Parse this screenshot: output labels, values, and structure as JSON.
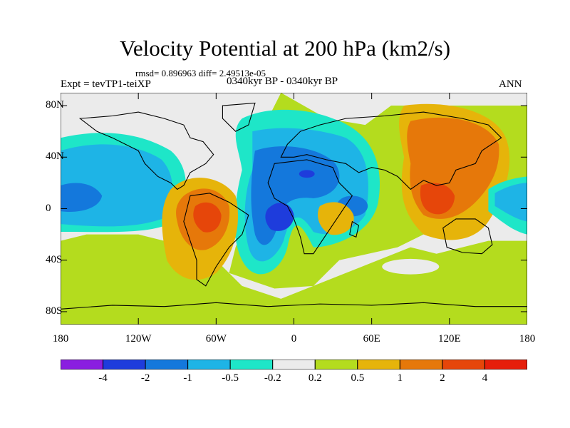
{
  "title": "Velocity Potential at 200 hPa (km2/s)",
  "stats": "rmsd= 0.896963 diff= 2.49513e-05",
  "experiment": "Expt = tevTP1-teiXP",
  "period": "0340kyr BP - 0340kyr BP",
  "season": "ANN",
  "map": {
    "projection": "cylindrical equidistant",
    "variable": "velocity potential",
    "level_hPa": 200,
    "units": "km2/s",
    "lon_range": [
      -180,
      180
    ],
    "lat_range": [
      -90,
      90
    ],
    "lat_ticks": [
      {
        "value": 80,
        "label": "80N"
      },
      {
        "value": 40,
        "label": "40N"
      },
      {
        "value": 0,
        "label": "0"
      },
      {
        "value": -40,
        "label": "40S"
      },
      {
        "value": -80,
        "label": "80S"
      }
    ],
    "lon_ticks": [
      {
        "value": -180,
        "label": "180"
      },
      {
        "value": -120,
        "label": "120W"
      },
      {
        "value": -60,
        "label": "60W"
      },
      {
        "value": 0,
        "label": "0"
      },
      {
        "value": 60,
        "label": "60E"
      },
      {
        "value": 120,
        "label": "120E"
      },
      {
        "value": 180,
        "label": "180"
      }
    ]
  },
  "colorbar": {
    "colors": [
      "#8a1ee0",
      "#1e3cdc",
      "#1478dc",
      "#1eb4e6",
      "#1ee6c8",
      "#ebebeb",
      "#b4dc1e",
      "#e6b40a",
      "#e6780a",
      "#e6460a",
      "#e61e0a"
    ],
    "labels": [
      "-4",
      "-2",
      "-1",
      "-0.5",
      "-0.2",
      "0.2",
      "0.5",
      "1",
      "2",
      "4"
    ],
    "levels": [
      -4,
      -2,
      -1,
      -0.5,
      -0.2,
      0.2,
      0.5,
      1,
      2,
      4
    ]
  }
}
